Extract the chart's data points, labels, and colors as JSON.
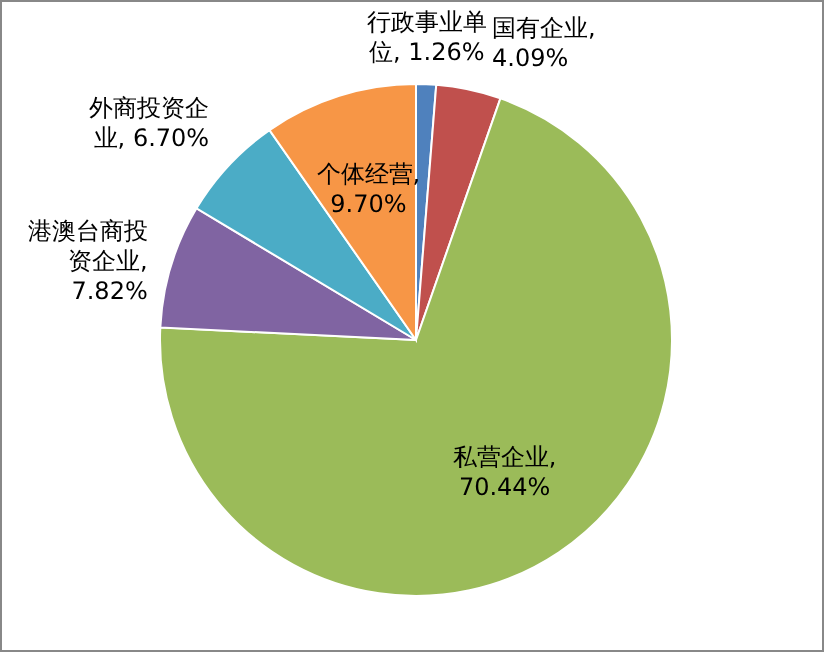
{
  "chart_data": {
    "type": "pie",
    "categories": [
      "行政事业单位",
      "国有企业",
      "私营企业",
      "港澳台商投资企业",
      "外商投资企业",
      "个体经营"
    ],
    "values": [
      1.26,
      4.09,
      70.44,
      7.82,
      6.7,
      9.7
    ],
    "value_labels": [
      ", 1.26%",
      ", 4.09%",
      ", 70.44%",
      ", 7.82%",
      ", 6.70%",
      ", 9.70%"
    ],
    "colors": [
      "#4f81bd",
      "#c0504d",
      "#9bbb59",
      "#8064a2",
      "#4bacc6",
      "#f79646"
    ]
  }
}
